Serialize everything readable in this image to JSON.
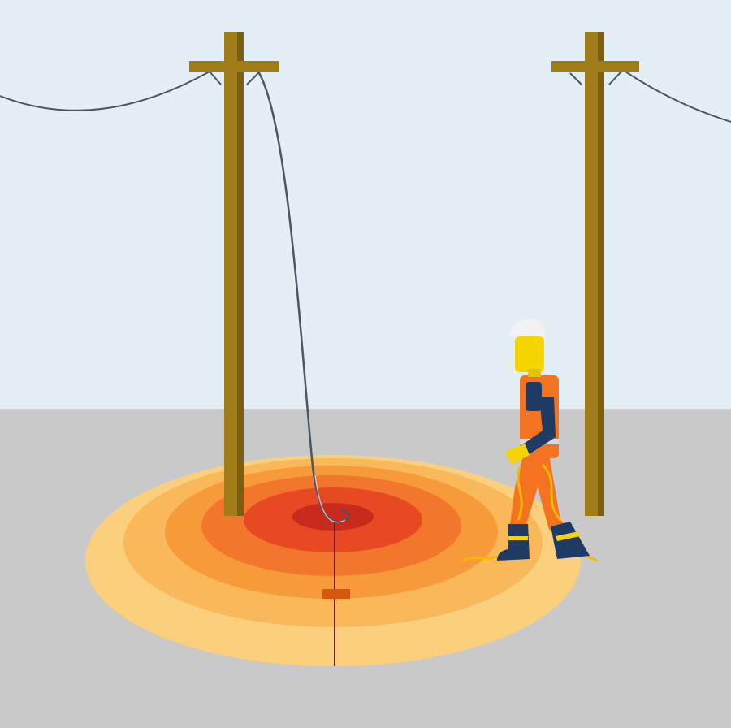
{
  "scene": {
    "colors": {
      "sky": "#e3eef5",
      "ground": "#c9c9c9",
      "pole": "#a07d18",
      "pole_shade": "#7c5f0e",
      "wire": "#4a5566",
      "zone_outer": "#fbd07c",
      "zone_2": "#f9b95a",
      "zone_3": "#f79a3a",
      "zone_4": "#f2772c",
      "zone_5": "#e74a22",
      "zone_core": "#c92a1e",
      "worker_vest": "#f37321",
      "worker_shirt": "#1f3b63",
      "worker_skin": "#f5d400",
      "helmet": "#f2f2f2",
      "current_arc": "#f5b700"
    },
    "poles": [
      {
        "name": "left-pole"
      },
      {
        "name": "right-pole"
      }
    ],
    "fallen_wire": {
      "name": "fallen-power-line"
    },
    "hazard_zone": {
      "rings": 6
    },
    "distance_marker": {
      "label": ""
    },
    "worker": {
      "name": "worker",
      "equipment": [
        "hard-hat",
        "hi-vis-vest"
      ]
    }
  }
}
